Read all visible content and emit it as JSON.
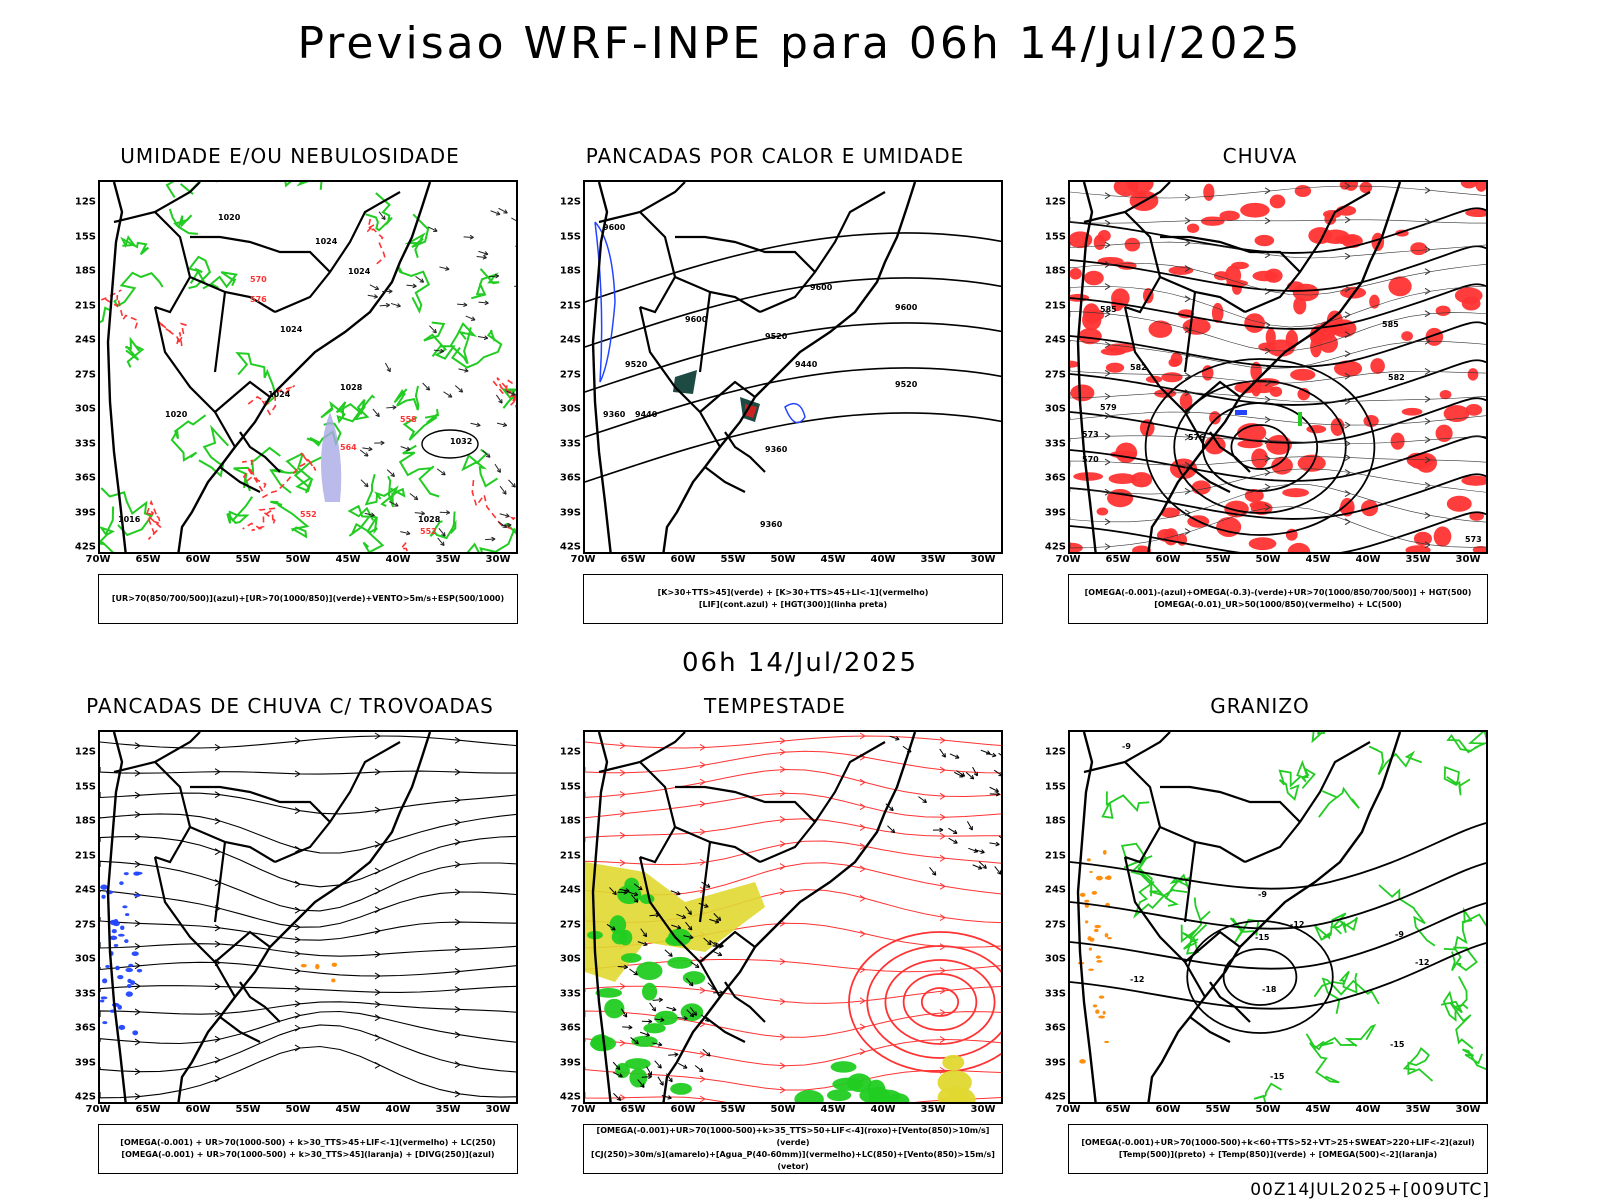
{
  "page": {
    "main_title": "Previsao WRF-INPE  para 06h 14/Jul/2025",
    "mid_title": "06h 14/Jul/2025",
    "footer": "00Z14JUL2025+[009UTC]"
  },
  "axes": {
    "lat_labels": [
      "12S",
      "15S",
      "18S",
      "21S",
      "24S",
      "27S",
      "30S",
      "33S",
      "36S",
      "39S",
      "42S"
    ],
    "lon_labels": [
      "70W",
      "65W",
      "60W",
      "55W",
      "50W",
      "45W",
      "40W",
      "35W",
      "30W"
    ]
  },
  "colors": {
    "green": "#22cc22",
    "red": "#ff3333",
    "blue": "#2244ff",
    "yellow": "#e0d830",
    "dark_teal": "#1e4a44",
    "orange": "#ff8800",
    "lavender": "#a9a9e6"
  },
  "chart_data": [
    {
      "type": "heatmap",
      "title": "UMIDADE E/OU NEBULOSIDADE",
      "legend": [
        "[UR>70(850/700/500)](azul)+[UR>70(1000/850)](verde)+VENTO>5m/s+ESP(500/1000)"
      ],
      "xlim": [
        -70,
        -28
      ],
      "ylim": [
        -42,
        -10
      ],
      "contour_labels": [
        "1020",
        "1024",
        "1024",
        "1024",
        "1024",
        "1028",
        "1028",
        "1032",
        "1016",
        "1020",
        "552",
        "552",
        "564",
        "570",
        "576",
        "558"
      ]
    },
    {
      "type": "heatmap",
      "title": "PANCADAS POR CALOR E UMIDADE",
      "legend": [
        "[K>30+TTS>45](verde) + [K>30+TTS>45+LI<-1](vermelho)",
        "[LIF](cont.azul) + [HGT(300)](linha preta)"
      ],
      "xlim": [
        -70,
        -28
      ],
      "ylim": [
        -42,
        -10
      ],
      "contour_labels": [
        "9600",
        "9600",
        "9600",
        "9600",
        "9520",
        "9520",
        "9520",
        "9440",
        "9440",
        "9360",
        "9360",
        "9360"
      ]
    },
    {
      "type": "heatmap",
      "title": "CHUVA",
      "legend": [
        "[OMEGA(-0.001)-(azul)+OMEGA(-0.3)-(verde)+UR>70(1000/850/700/500)] + HGT(500)",
        "[OMEGA(-0.01)_UR>50(1000/850)(vermelho) + LC(500)"
      ],
      "xlim": [
        -70,
        -28
      ],
      "ylim": [
        -42,
        -10
      ],
      "contour_labels": [
        "585",
        "585",
        "582",
        "582",
        "579",
        "576",
        "573",
        "573",
        "570"
      ]
    },
    {
      "type": "heatmap",
      "title": "PANCADAS DE CHUVA C/ TROVOADAS",
      "legend": [
        "[OMEGA(-0.001) + UR>70(1000-500) + k>30_TTS>45+LIF<-1](vermelho) + LC(250)",
        "[OMEGA(-0.001) + UR>70(1000-500) + k>30_TTS>45](laranja) + [DIVG(250)](azul)"
      ],
      "xlim": [
        -70,
        -28
      ],
      "ylim": [
        -42,
        -10
      ]
    },
    {
      "type": "heatmap",
      "title": "TEMPESTADE",
      "legend": [
        "[OMEGA(-0.001)+UR>70(1000-500)+k>35_TTS>50+LIF<-4](roxo)+[Vento(850)>10m/s](verde)",
        "[CJ(250)>30m/s](amarelo)+[Agua_P(40-60mm)](vermelho)+LC(850)+[Vento(850)>15m/s](vetor)"
      ],
      "xlim": [
        -70,
        -28
      ],
      "ylim": [
        -42,
        -10
      ]
    },
    {
      "type": "heatmap",
      "title": "GRANIZO",
      "legend": [
        "[OMEGA(-0.001)+UR>70(1000-500)+k<60+TTS>52+VT>25+SWEAT>220+LIF<-2](azul)",
        "[Temp(500)](preto) + [Temp(850)](verde) + [OMEGA(500)<-2](laranja)"
      ],
      "xlim": [
        -70,
        -28
      ],
      "ylim": [
        -42,
        -10
      ],
      "contour_labels": [
        "-9",
        "-9",
        "-9",
        "-12",
        "-12",
        "-15",
        "-18",
        "-15",
        "-12",
        "-15"
      ]
    }
  ]
}
